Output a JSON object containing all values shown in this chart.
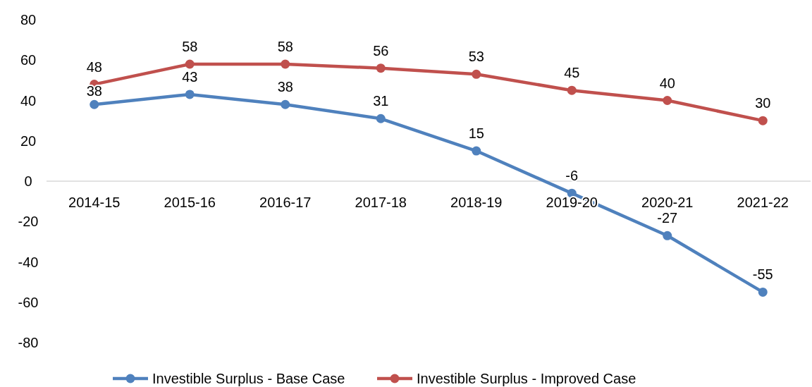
{
  "chart_data": {
    "type": "line",
    "categories": [
      "2014-15",
      "2015-16",
      "2016-17",
      "2017-18",
      "2018-19",
      "2019-20",
      "2020-21",
      "2021-22"
    ],
    "series": [
      {
        "name": "Investible Surplus - Base Case",
        "color": "#4f81bd",
        "values": [
          38,
          43,
          38,
          31,
          15,
          -6,
          -27,
          -55
        ]
      },
      {
        "name": "Investible Surplus - Improved Case",
        "color": "#c0504d",
        "values": [
          48,
          58,
          58,
          56,
          53,
          45,
          40,
          30
        ]
      }
    ],
    "ylim": [
      -80,
      80
    ],
    "yticks": [
      -80,
      -60,
      -40,
      -20,
      0,
      20,
      40,
      60,
      80
    ],
    "grid": false,
    "legend": "bottom",
    "marker": "circle",
    "line_style": "solid",
    "data_labels": true
  }
}
